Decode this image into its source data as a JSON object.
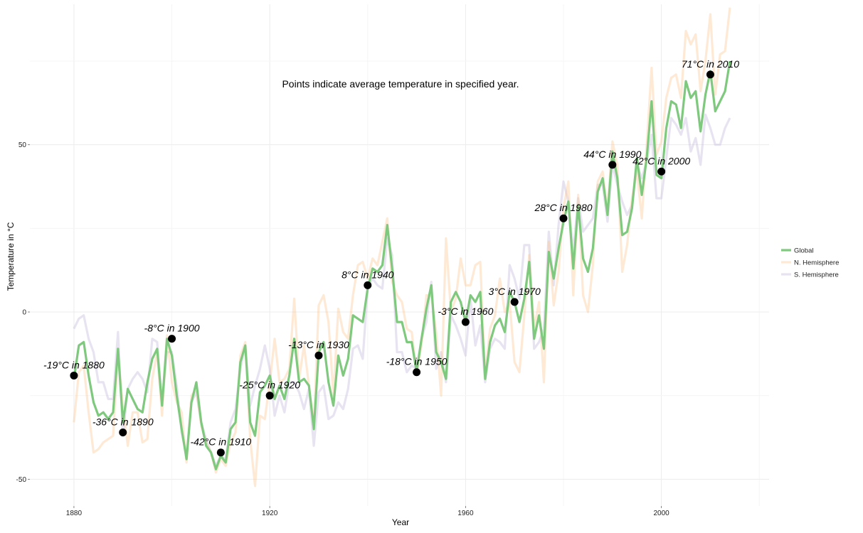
{
  "chart_data": {
    "type": "line",
    "note": "Points indicate average temperature in specified year.",
    "xlabel": "Year",
    "ylabel": "Temperature in °C",
    "xlim": [
      1871,
      2022
    ],
    "ylim": [
      -58,
      92
    ],
    "x_ticks": [
      1880,
      1920,
      1960,
      2000
    ],
    "y_ticks": [
      -50,
      0,
      50
    ],
    "grid": true,
    "legend_position": "right",
    "series": [
      {
        "name": "Global",
        "color": "#7fc97f",
        "values": [
          -20,
          -10,
          -9,
          -19,
          -27,
          -31,
          -30,
          -32,
          -30,
          -11,
          -33,
          -23,
          -26,
          -29,
          -30,
          -21,
          -14,
          -11,
          -28,
          -8,
          -13,
          -25,
          -35,
          -44,
          -27,
          -21,
          -33,
          -40,
          -42,
          -47,
          -43,
          -45,
          -35,
          -33,
          -15,
          -10,
          -33,
          -37,
          -24,
          -22,
          -19,
          -26,
          -22,
          -26,
          -19,
          -8,
          -21,
          -20,
          -22,
          -35,
          -12,
          -9,
          -21,
          -28,
          -13,
          -19,
          -14,
          -1,
          -2,
          -3,
          7,
          13,
          12,
          14,
          26,
          13,
          -3,
          -3,
          -9,
          -9,
          -18,
          -8,
          1,
          8,
          -12,
          -15,
          -20,
          3,
          6,
          3,
          -3,
          5,
          3,
          6,
          -20,
          -9,
          -4,
          -2,
          -6,
          6,
          3,
          -3,
          4,
          15,
          -8,
          -1,
          -11,
          18,
          10,
          19,
          27,
          33,
          13,
          32,
          16,
          12,
          19,
          36,
          40,
          29,
          48,
          40,
          23,
          24,
          31,
          46,
          35,
          46,
          63,
          41,
          40,
          55,
          63,
          62,
          55,
          69,
          64,
          66,
          54,
          65,
          72,
          60,
          63,
          66,
          75
        ],
        "start": 1880
      },
      {
        "name": "N. Hemisphere",
        "color": "#fdc086",
        "values": [
          -33,
          -18,
          -16,
          -30,
          -42,
          -41,
          -39,
          -38,
          -37,
          -13,
          -28,
          -40,
          -30,
          -30,
          -39,
          -38,
          -20,
          -12,
          -31,
          -7,
          -21,
          -27,
          -30,
          -45,
          -25,
          -23,
          -34,
          -39,
          -42,
          -48,
          -44,
          -46,
          -39,
          -36,
          -13,
          -9,
          -38,
          -52,
          -31,
          -32,
          -21,
          -8,
          -21,
          -20,
          -17,
          4,
          -20,
          -10,
          -22,
          -34,
          2,
          5,
          -3,
          -25,
          1,
          -6,
          -8,
          5,
          14,
          15,
          10,
          16,
          14,
          21,
          28,
          9,
          5,
          3,
          -5,
          -6,
          -18,
          -10,
          5,
          5,
          -6,
          -25,
          22,
          0,
          4,
          16,
          8,
          8,
          14,
          15,
          -19,
          -5,
          -1,
          10,
          0,
          3,
          -15,
          -18,
          -1,
          17,
          -5,
          3,
          -21,
          21,
          2,
          12,
          31,
          39,
          5,
          35,
          5,
          0,
          14,
          39,
          42,
          30,
          51,
          44,
          12,
          20,
          34,
          42,
          28,
          50,
          73,
          47,
          51,
          64,
          70,
          71,
          64,
          84,
          80,
          83,
          66,
          75,
          89,
          65,
          77,
          78,
          91
        ],
        "start": 1880
      },
      {
        "name": "S. Hemisphere",
        "color": "#beaed4",
        "values": [
          -5,
          -2,
          -1,
          -8,
          -12,
          -21,
          -21,
          -26,
          -26,
          -6,
          -37,
          -23,
          -20,
          -18,
          -20,
          -24,
          -8,
          -9,
          -27,
          -12,
          -12,
          -22,
          -36,
          -43,
          -27,
          -24,
          -33,
          -38,
          -42,
          -46,
          -43,
          -44,
          -33,
          -29,
          -17,
          -10,
          -28,
          -22,
          -17,
          -10,
          -17,
          -31,
          -25,
          -30,
          -21,
          -21,
          -24,
          -29,
          -23,
          -40,
          -24,
          -22,
          -32,
          -31,
          -27,
          -29,
          -23,
          -11,
          -10,
          -14,
          7,
          10,
          8,
          7,
          22,
          17,
          -12,
          -12,
          -18,
          -16,
          -17,
          -8,
          -3,
          9,
          -17,
          -12,
          -21,
          -1,
          -4,
          -8,
          -13,
          4,
          -10,
          -4,
          -21,
          -11,
          -8,
          -9,
          -11,
          14,
          10,
          4,
          20,
          20,
          -11,
          -9,
          -5,
          24,
          8,
          26,
          39,
          33,
          18,
          34,
          24,
          26,
          28,
          38,
          38,
          27,
          44,
          38,
          33,
          29,
          32,
          44,
          40,
          45,
          53,
          34,
          34,
          46,
          58,
          56,
          53,
          58,
          48,
          52,
          44,
          59,
          55,
          50,
          50,
          55,
          58
        ],
        "start": 1880
      }
    ],
    "points": [
      {
        "year": 1880,
        "value": -19,
        "label": "-19°C in 1880"
      },
      {
        "year": 1890,
        "value": -36,
        "label": "-36°C in 1890"
      },
      {
        "year": 1900,
        "value": -8,
        "label": "-8°C in 1900"
      },
      {
        "year": 1910,
        "value": -42,
        "label": "-42°C in 1910"
      },
      {
        "year": 1920,
        "value": -25,
        "label": "-25°C in 1920"
      },
      {
        "year": 1930,
        "value": -13,
        "label": "-13°C in 1930"
      },
      {
        "year": 1940,
        "value": 8,
        "label": "8°C in 1940"
      },
      {
        "year": 1950,
        "value": -18,
        "label": "-18°C in 1950"
      },
      {
        "year": 1960,
        "value": -3,
        "label": "-3°C in 1960"
      },
      {
        "year": 1970,
        "value": 3,
        "label": "3°C in 1970"
      },
      {
        "year": 1980,
        "value": 28,
        "label": "28°C in 1980"
      },
      {
        "year": 1990,
        "value": 44,
        "label": "44°C in 1990"
      },
      {
        "year": 2000,
        "value": 42,
        "label": "42°C in 2000"
      },
      {
        "year": 2010,
        "value": 71,
        "label": "71°C in 2010"
      }
    ]
  }
}
